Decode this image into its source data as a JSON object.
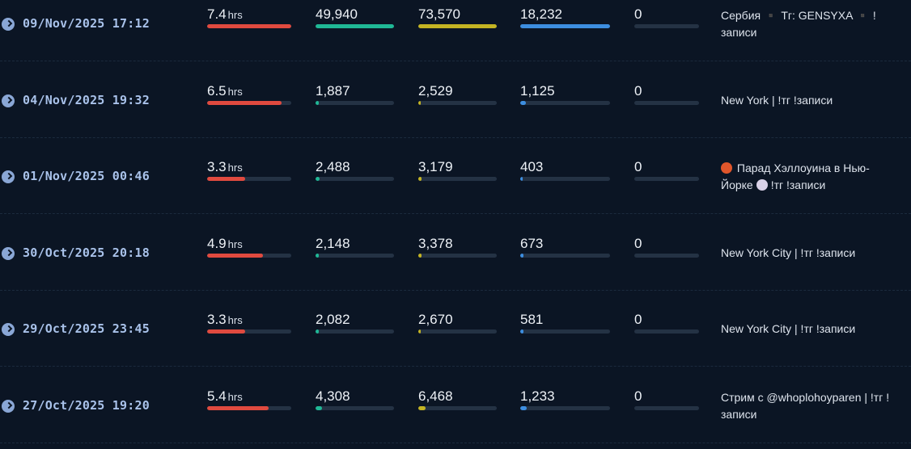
{
  "colors": {
    "background": "#0b1524",
    "duration": "#e04a3f",
    "col2": "#1fb896",
    "col3": "#c4b423",
    "col4": "#3d8ee0",
    "col5": "#3a4656",
    "track": "#243244"
  },
  "rows": [
    {
      "date": "09/Nov/2025 17:12",
      "duration": "7.4",
      "duration_unit": "hrs",
      "duration_fraction": 1.0,
      "c2": "49,940",
      "c2_fraction": 1.0,
      "c3": "73,570",
      "c3_fraction": 1.0,
      "c4": "18,232",
      "c4_fraction": 1.0,
      "c5": "0",
      "c5_fraction": 0,
      "title_lines": [
        "Сербия ▪️ Тг: GENSYXA ▪️ !",
        "записи"
      ]
    },
    {
      "date": "04/Nov/2025 19:32",
      "duration": "6.5",
      "duration_unit": "hrs",
      "duration_fraction": 0.88,
      "c2": "1,887",
      "c2_fraction": 0.038,
      "c3": "2,529",
      "c3_fraction": 0.034,
      "c4": "1,125",
      "c4_fraction": 0.062,
      "c5": "0",
      "c5_fraction": 0,
      "title_lines": [
        "New York | !тг !записи"
      ]
    },
    {
      "date": "01/Nov/2025 00:46",
      "duration": "3.3",
      "duration_unit": "hrs",
      "duration_fraction": 0.45,
      "c2": "2,488",
      "c2_fraction": 0.05,
      "c3": "3,179",
      "c3_fraction": 0.043,
      "c4": "403",
      "c4_fraction": 0.022,
      "c5": "0",
      "c5_fraction": 0,
      "title_lines": [
        "Парад Хэллоуина в Нью-",
        "Йорке",
        "!тг !записи"
      ]
    },
    {
      "date": "30/Oct/2025 20:18",
      "duration": "4.9",
      "duration_unit": "hrs",
      "duration_fraction": 0.66,
      "c2": "2,148",
      "c2_fraction": 0.043,
      "c3": "3,378",
      "c3_fraction": 0.046,
      "c4": "673",
      "c4_fraction": 0.037,
      "c5": "0",
      "c5_fraction": 0,
      "title_lines": [
        "New York City | !тг !записи"
      ]
    },
    {
      "date": "29/Oct/2025 23:45",
      "duration": "3.3",
      "duration_unit": "hrs",
      "duration_fraction": 0.45,
      "c2": "2,082",
      "c2_fraction": 0.042,
      "c3": "2,670",
      "c3_fraction": 0.036,
      "c4": "581",
      "c4_fraction": 0.032,
      "c5": "0",
      "c5_fraction": 0,
      "title_lines": [
        "New York City | !тг !записи"
      ]
    },
    {
      "date": "27/Oct/2025 19:20",
      "duration": "5.4",
      "duration_unit": "hrs",
      "duration_fraction": 0.73,
      "c2": "4,308",
      "c2_fraction": 0.086,
      "c3": "6,468",
      "c3_fraction": 0.088,
      "c4": "1,233",
      "c4_fraction": 0.068,
      "c5": "0",
      "c5_fraction": 0,
      "title_lines": [
        "Стрим с @whoplohoyparen | !тг !",
        "записи"
      ]
    }
  ]
}
